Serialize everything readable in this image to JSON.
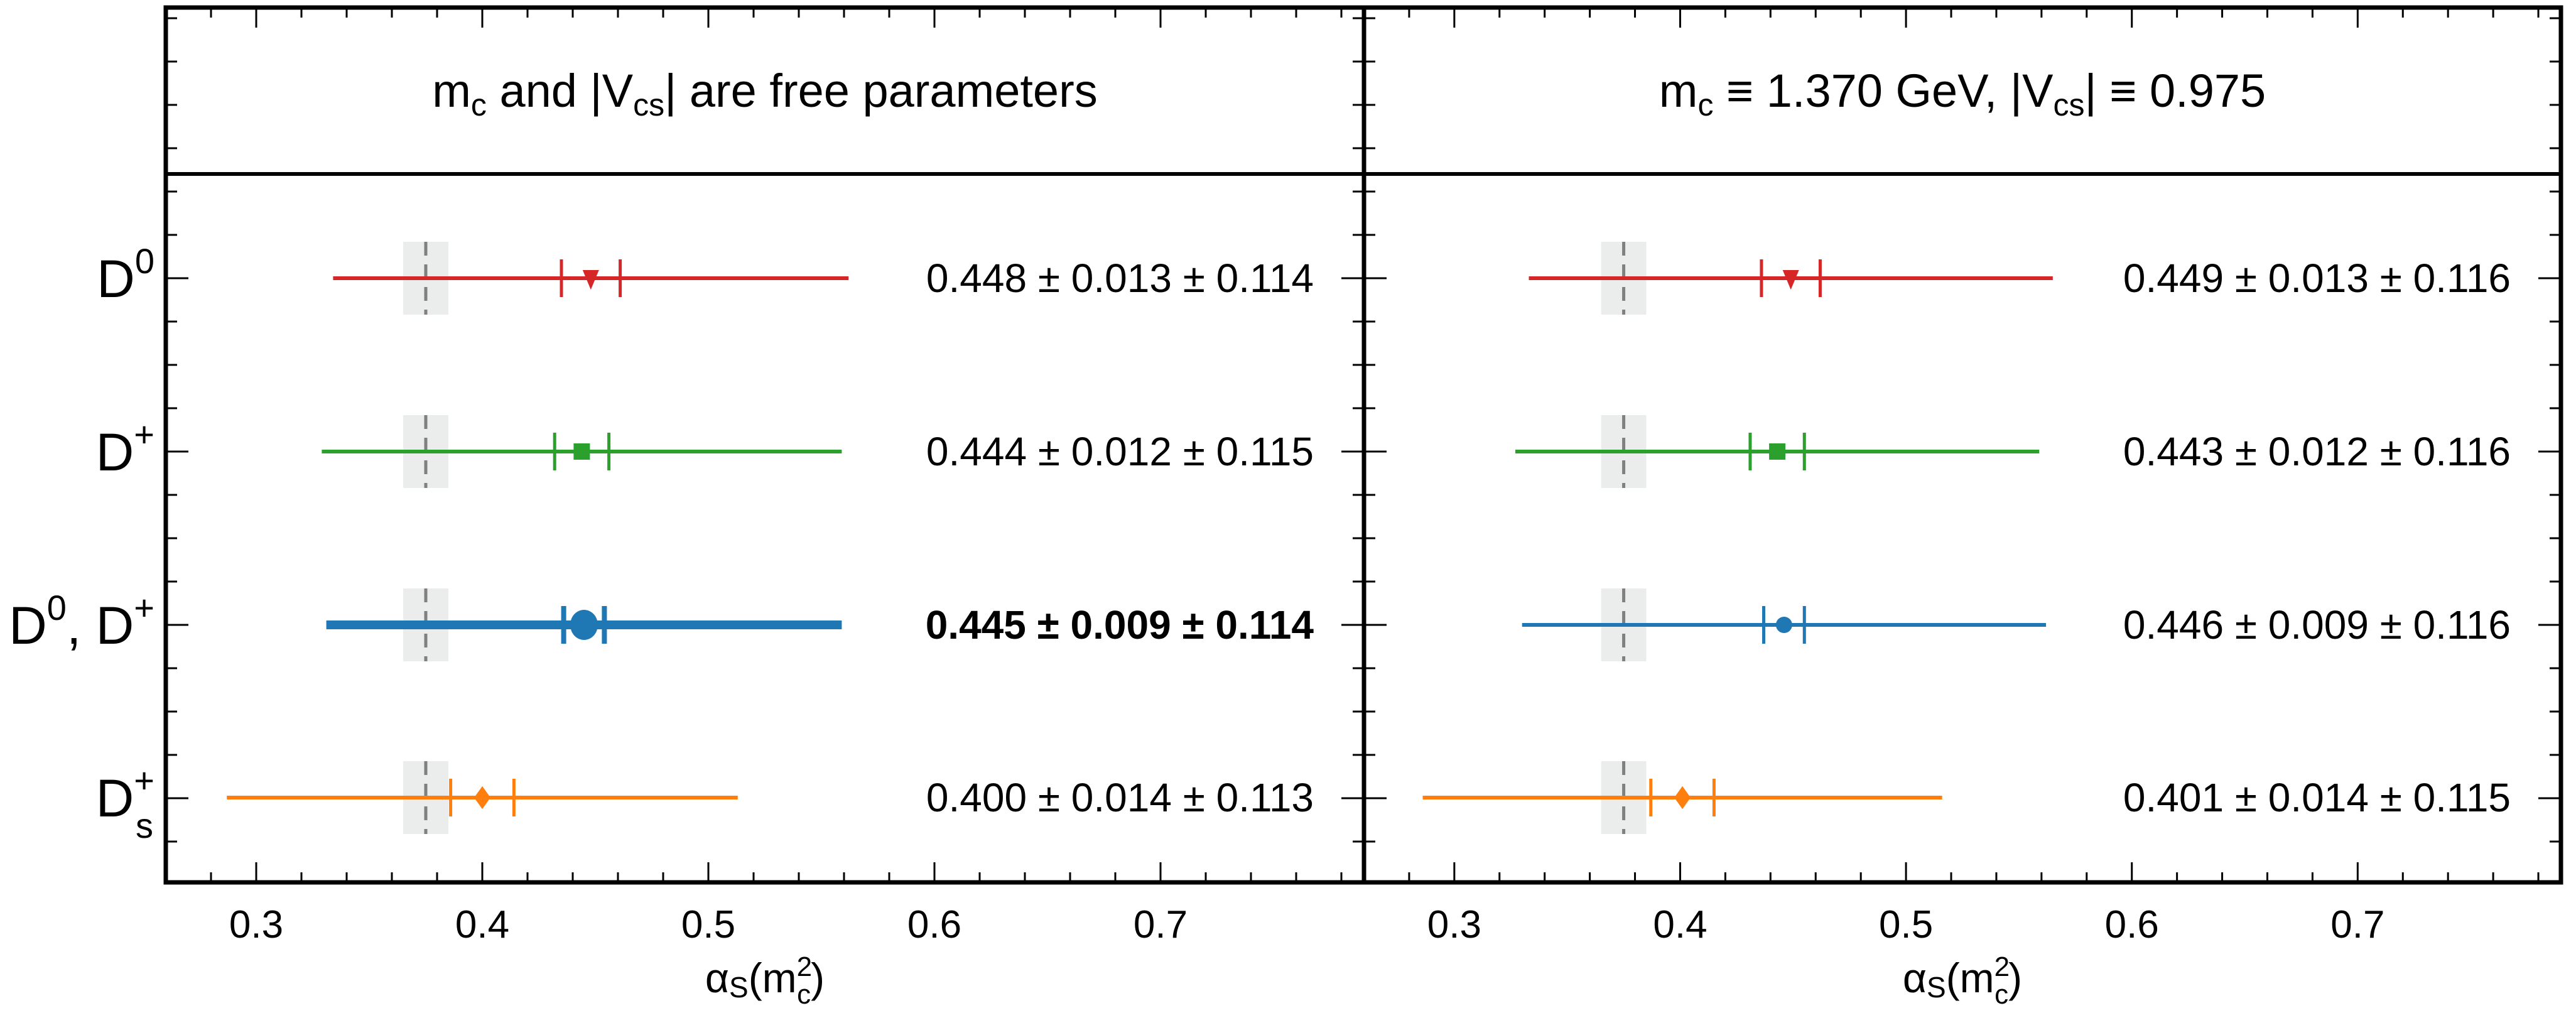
{
  "chart_data": {
    "type": "forest",
    "xlabel": "αS(m_c^2)",
    "xlabel_parts": {
      "main": "α",
      "sub": "S",
      "open": "(m",
      "sup": "2",
      "sub2": "c",
      "close": ")"
    },
    "xlim": [
      0.26,
      0.79
    ],
    "x_ticks": [
      0.3,
      0.4,
      0.5,
      0.6,
      0.7
    ],
    "x_tick_labels": [
      "0.3",
      "0.4",
      "0.5",
      "0.6",
      "0.7"
    ],
    "x_minor_step": 0.02,
    "reference": {
      "center": 0.375,
      "band": [
        0.365,
        0.385
      ],
      "style": "gray dashed line with light gray band"
    },
    "categories": [
      {
        "key": "D0",
        "label_base": "D",
        "label_sup": "0",
        "label_sub": "",
        "label_extra": ""
      },
      {
        "key": "Dplus",
        "label_base": "D",
        "label_sup": "+",
        "label_sub": "",
        "label_extra": ""
      },
      {
        "key": "D0Dplus",
        "label_base": "D",
        "label_sup": "0",
        "label_sub": "",
        "label_extra": ", D",
        "label_extra_sup": "+"
      },
      {
        "key": "Ds",
        "label_base": "D",
        "label_sup": "+",
        "label_sub": "s",
        "label_extra": ""
      }
    ],
    "series_style": [
      {
        "key": "D0",
        "color": "#d62728",
        "marker": "triangle-down"
      },
      {
        "key": "Dplus",
        "color": "#2ca02c",
        "marker": "square"
      },
      {
        "key": "D0Dplus",
        "color": "#1f77b4",
        "marker": "circle"
      },
      {
        "key": "Ds",
        "color": "#ff7f0e",
        "marker": "diamond"
      }
    ],
    "panels": [
      {
        "title_parts": {
          "m": "m",
          "m_sub": "c",
          "mid": " and |V",
          "v_sub": "cs",
          "end": "| are free parameters"
        },
        "title": "m_c and |V_cs| are free parameters",
        "highlight_key": "D0Dplus",
        "points": [
          {
            "key": "D0",
            "value": 0.448,
            "stat": 0.013,
            "total": 0.114,
            "text": "0.448 ± 0.013 ± 0.114"
          },
          {
            "key": "Dplus",
            "value": 0.444,
            "stat": 0.012,
            "total": 0.115,
            "text": "0.444 ± 0.012 ± 0.115"
          },
          {
            "key": "D0Dplus",
            "value": 0.445,
            "stat": 0.009,
            "total": 0.114,
            "text": "0.445 ± 0.009 ± 0.114"
          },
          {
            "key": "Ds",
            "value": 0.4,
            "stat": 0.014,
            "total": 0.113,
            "text": "0.400 ± 0.014 ± 0.113"
          }
        ]
      },
      {
        "title_parts": {
          "m": "m",
          "m_sub": "c",
          "mid": " ≡ 1.370 GeV, |V",
          "v_sub": "cs",
          "end": "| ≡ 0.975"
        },
        "title": "m_c ≡ 1.370 GeV, |V_cs| ≡ 0.975",
        "highlight_key": "",
        "points": [
          {
            "key": "D0",
            "value": 0.449,
            "stat": 0.013,
            "total": 0.116,
            "text": "0.449 ± 0.013 ± 0.116"
          },
          {
            "key": "Dplus",
            "value": 0.443,
            "stat": 0.012,
            "total": 0.116,
            "text": "0.443 ± 0.012 ± 0.116"
          },
          {
            "key": "D0Dplus",
            "value": 0.446,
            "stat": 0.009,
            "total": 0.116,
            "text": "0.446 ± 0.009 ± 0.116"
          },
          {
            "key": "Ds",
            "value": 0.401,
            "stat": 0.014,
            "total": 0.115,
            "text": "0.401 ± 0.014 ± 0.115"
          }
        ]
      }
    ]
  }
}
